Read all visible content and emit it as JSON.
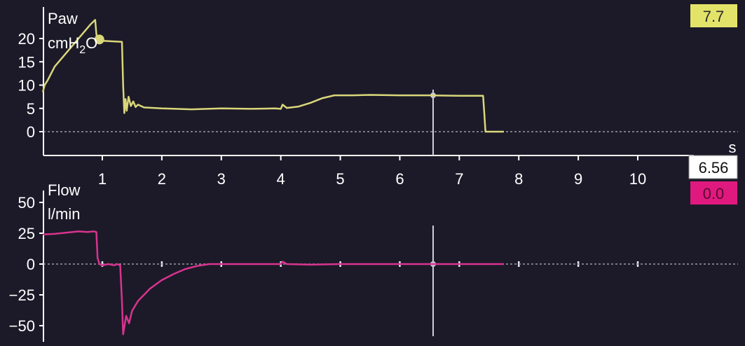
{
  "colors": {
    "background": "#1c1a28",
    "pressure_trace": "#d9d77a",
    "flow_trace": "#d8338f",
    "pressure_badge": "#e3e36a",
    "flow_badge": "#e0197f",
    "time_badge": "#ffffff",
    "axis": "#ffffff",
    "cursor": "#d0d0d8"
  },
  "readouts": {
    "pressure_value": "7.7",
    "time_value": "6.56",
    "flow_value": "0.0",
    "time_unit": "s"
  },
  "chart_data": [
    {
      "type": "line",
      "ylabel_line1": "Paw",
      "ylabel_line2_main": "cmH",
      "ylabel_line2_sub": "2",
      "ylabel_line2_tail": "O",
      "xlim": [
        0,
        11.3
      ],
      "ylim": [
        -6.5,
        27
      ],
      "x_ticks": [
        1,
        2,
        3,
        4,
        5,
        6,
        7,
        8,
        9,
        10
      ],
      "x_tick_labels": [
        "1",
        "2",
        "3",
        "4",
        "5",
        "6",
        "7",
        "8",
        "9",
        "10"
      ],
      "y_ticks": [
        0,
        5,
        10,
        15,
        20
      ],
      "y_tick_labels": [
        "0",
        "5",
        "10",
        "15",
        "20"
      ],
      "cursor_x": 6.56,
      "series": [
        {
          "x": [
            0,
            0.03,
            0.08,
            0.2,
            0.4,
            0.6,
            0.8,
            0.88,
            0.9,
            0.92,
            1.0,
            1.33,
            1.35,
            1.37,
            1.39,
            1.41,
            1.44,
            1.48,
            1.52,
            1.56,
            1.6,
            1.7,
            2.0,
            2.5,
            3.0,
            3.5,
            3.9,
            4.0,
            4.03,
            4.1,
            4.3,
            4.5,
            4.7,
            4.9,
            5.2,
            5.5,
            6.0,
            6.5,
            7.0,
            7.4,
            7.42,
            7.44,
            7.75
          ],
          "y": [
            8.5,
            10,
            11,
            14,
            17,
            20,
            23,
            24,
            21,
            19.5,
            19.5,
            19.3,
            10,
            4,
            7,
            4.5,
            7.5,
            5.5,
            6.5,
            5.3,
            5.8,
            5.2,
            5.0,
            4.8,
            5.0,
            4.9,
            5.0,
            4.9,
            5.8,
            5.1,
            5.4,
            6.2,
            7.2,
            7.8,
            7.8,
            7.9,
            7.8,
            7.8,
            7.7,
            7.7,
            4,
            0,
            0
          ]
        }
      ]
    },
    {
      "type": "line",
      "ylabel_line1": "Flow",
      "ylabel_line2": "l/min",
      "xlim": [
        0,
        11.3
      ],
      "ylim": [
        -60,
        60
      ],
      "y_ticks": [
        50,
        25,
        0,
        -25,
        -50
      ],
      "y_tick_labels": [
        "50",
        "25",
        "0",
        "−25",
        "−50"
      ],
      "cursor_x": 6.56,
      "series": [
        {
          "x": [
            0,
            0.2,
            0.4,
            0.6,
            0.75,
            0.85,
            0.9,
            0.92,
            0.95,
            1.0,
            1.1,
            1.2,
            1.25,
            1.3,
            1.33,
            1.35,
            1.4,
            1.45,
            1.5,
            1.6,
            1.8,
            2.0,
            2.2,
            2.4,
            2.6,
            2.8,
            3.0,
            3.5,
            4.0,
            4.03,
            4.1,
            4.5,
            5.0,
            6.0,
            7.0,
            7.75
          ],
          "y": [
            24,
            24.5,
            25.5,
            26.5,
            26,
            26.5,
            26,
            5,
            0,
            -1,
            0,
            -1,
            0,
            -1,
            -30,
            -57,
            -42,
            -48,
            -38,
            -30,
            -20,
            -13,
            -8,
            -4,
            -1.5,
            0,
            0,
            0,
            0,
            2,
            0,
            -0.5,
            0,
            0,
            0,
            0
          ]
        }
      ]
    }
  ]
}
